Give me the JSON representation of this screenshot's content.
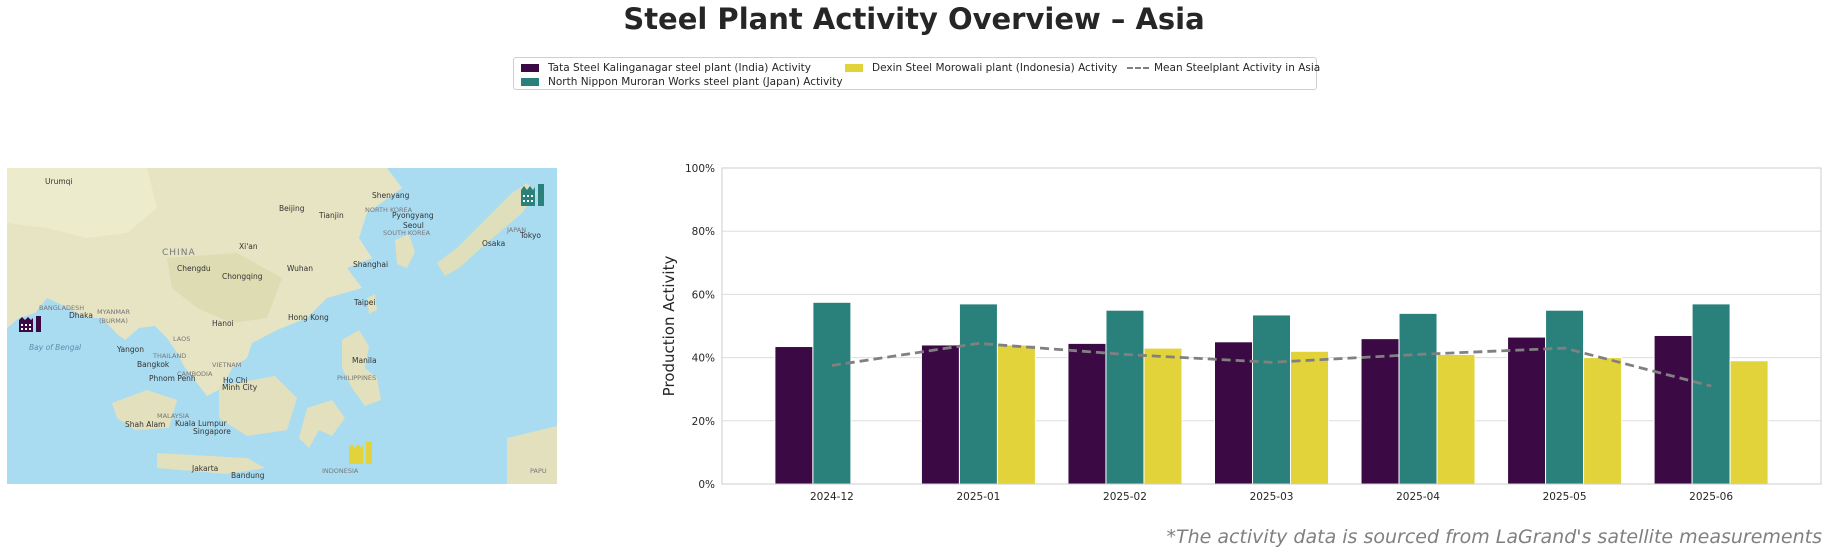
{
  "title": "Steel Plant Activity Overview – Asia",
  "footnote": "*The activity data is sourced from LaGrand's satellite measurements",
  "legend": [
    {
      "label": "Tata Steel Kalinganagar steel plant (India) Activity",
      "color": "#3b0a45"
    },
    {
      "label": "North Nippon Muroran Works steel plant (Japan) Activity",
      "color": "#2a817c"
    },
    {
      "label": "Dexin Steel Morowali plant (Indonesia) Activity",
      "color": "#e3d33b"
    },
    {
      "label": "Mean Steelplant Activity in Asia",
      "color": "#808080"
    }
  ],
  "map": {
    "labels": [
      "Urumqi",
      "Shenyang",
      "Beijing",
      "Tianjin",
      "NORTH KOREA",
      "Pyongyang",
      "Seoul",
      "SOUTH KOREA",
      "JAPAN",
      "Osaka",
      "Tokyo",
      "CHINA",
      "Xi'an",
      "Chengdu",
      "Wuhan",
      "Chongqing",
      "Shanghai",
      "BANGLADESH",
      "MYANMAR",
      "(BURMA)",
      "Dhaka",
      "Bay of Bengal",
      "Hanoi",
      "Hong Kong",
      "Taipei",
      "LAOS",
      "Yangon",
      "THAILAND",
      "VIETNAM",
      "Bangkok",
      "CAMBODIA",
      "Phnom Penh",
      "Ho Chi",
      "Minh City",
      "Manila",
      "PHILIPPINES",
      "MALAYSIA",
      "Kuala Lumpur",
      "Shah Alam",
      "Singapore",
      "INDONESIA",
      "Jakarta",
      "Bandung",
      "PAPU"
    ],
    "markers": [
      {
        "name": "india-plant",
        "color": "#3b0a45"
      },
      {
        "name": "japan-plant",
        "color": "#2a817c"
      },
      {
        "name": "indonesia-plant",
        "color": "#e3d33b"
      }
    ]
  },
  "chart_data": {
    "type": "bar",
    "categories": [
      "2024-12",
      "2025-01",
      "2025-02",
      "2025-03",
      "2025-04",
      "2025-05",
      "2025-06"
    ],
    "series": [
      {
        "name": "Tata Steel Kalinganagar steel plant (India) Activity",
        "color": "#3b0a45",
        "values": [
          43.5,
          44,
          44.5,
          45,
          46,
          46.5,
          47
        ]
      },
      {
        "name": "North Nippon Muroran Works steel plant (Japan) Activity",
        "color": "#2a817c",
        "values": [
          57.5,
          57,
          55,
          53.5,
          54,
          55,
          57
        ]
      },
      {
        "name": "Dexin Steel Morowali plant (Indonesia) Activity",
        "color": "#e3d33b",
        "values": [
          null,
          44,
          43,
          42,
          41,
          40,
          39
        ]
      }
    ],
    "line": {
      "name": "Mean Steelplant Activity in Asia",
      "color": "#808080",
      "style": "dashed",
      "values": [
        37.5,
        44.5,
        41,
        38.5,
        41,
        43,
        31
      ]
    },
    "ylabel": "Production Activity",
    "xlabel": "",
    "ylim": [
      0,
      100
    ],
    "yticks": [
      0,
      20,
      40,
      60,
      80,
      100
    ],
    "ytick_labels": [
      "0%",
      "20%",
      "40%",
      "60%",
      "80%",
      "100%"
    ],
    "grid": "horizontal",
    "legend_position": "top-center"
  }
}
